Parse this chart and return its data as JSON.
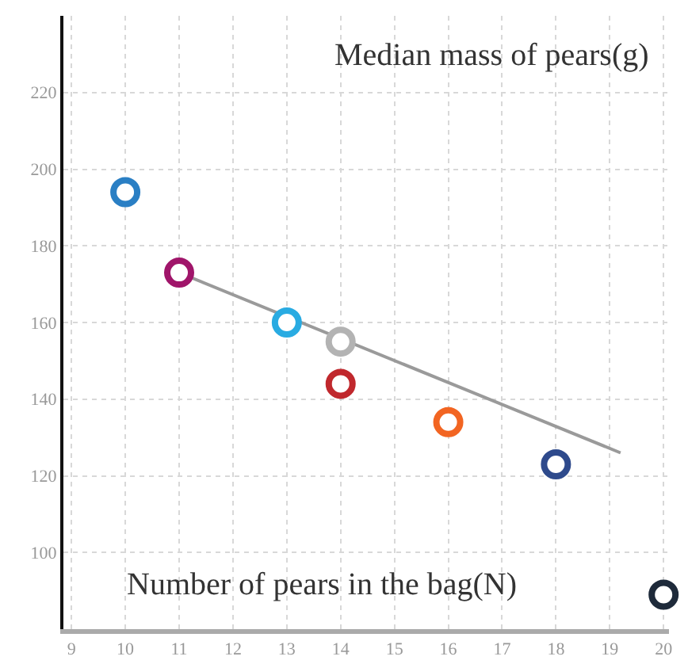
{
  "chart_data": {
    "type": "scatter",
    "xlabel": "Number of pears in the bag(N)",
    "ylabel": "Median mass of pears(g)",
    "x": [
      10,
      11,
      13,
      14,
      14,
      16,
      18,
      20
    ],
    "series": [
      {
        "values": [
          194,
          173,
          160,
          155,
          144,
          134,
          123,
          89
        ],
        "colors": [
          "#2a7fc4",
          "#a0156a",
          "#29abe2",
          "#b3b3b3",
          "#c0282d",
          "#f26522",
          "#2e4a8c",
          "#1e2a3a"
        ],
        "marker": "circle"
      },
      {
        "type": "line",
        "x": [
          11,
          19.2
        ],
        "values": [
          173,
          126
        ],
        "color": "#9a9a9a"
      }
    ],
    "xlim": [
      8.85,
      20.1
    ],
    "xticks": [
      9,
      10,
      11,
      12,
      13,
      14,
      15,
      16,
      17,
      18,
      19,
      20
    ],
    "ylim": [
      80,
      240
    ],
    "yticks": [
      100,
      120,
      140,
      160,
      180,
      200,
      220
    ],
    "grid": true
  }
}
